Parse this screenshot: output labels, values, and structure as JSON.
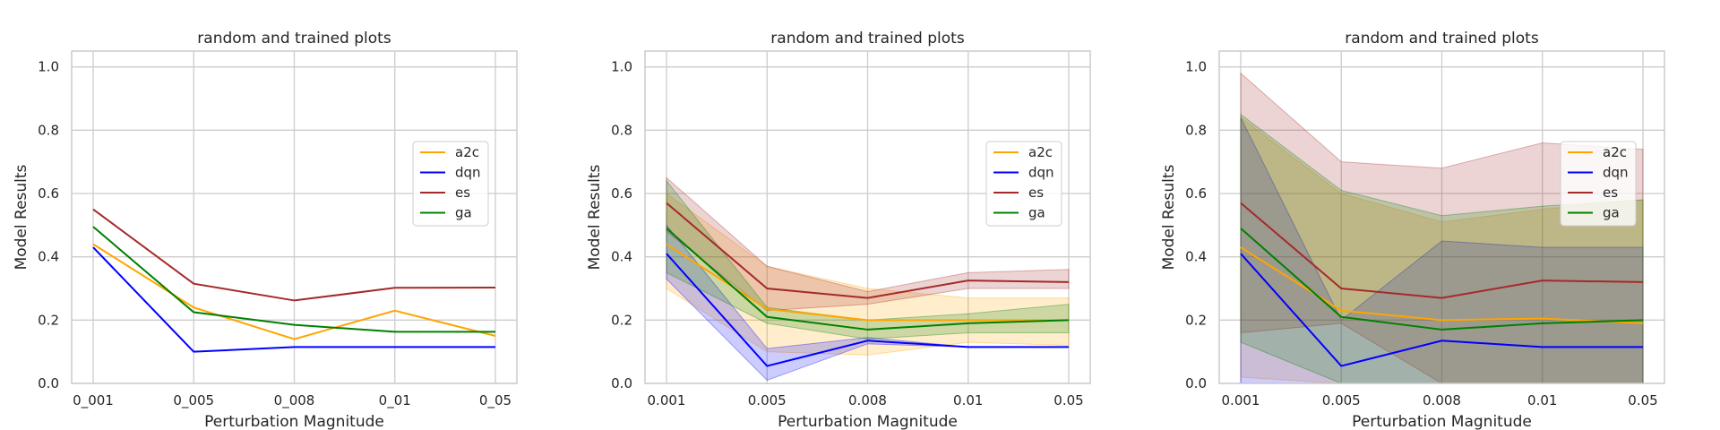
{
  "chart_data": [
    {
      "type": "line",
      "title": "random and trained plots",
      "xlabel": "Perturbation Magnitude",
      "ylabel": "Model Results",
      "categories": [
        "0_001",
        "0_005",
        "0_008",
        "0_01",
        "0_05"
      ],
      "ylim": [
        0,
        1.05
      ],
      "yticks": [
        "0.0",
        "0.2",
        "0.4",
        "0.6",
        "0.8",
        "1.0"
      ],
      "grid": true,
      "legend": "center-right",
      "series": [
        {
          "name": "a2c",
          "color": "#ffa500",
          "values": [
            0.44,
            0.24,
            0.14,
            0.23,
            0.15
          ]
        },
        {
          "name": "dqn",
          "color": "#0000ff",
          "values": [
            0.43,
            0.1,
            0.115,
            0.115,
            0.115
          ]
        },
        {
          "name": "es",
          "color": "#a52a2a",
          "values": [
            0.55,
            0.315,
            0.262,
            0.302,
            0.303
          ]
        },
        {
          "name": "ga",
          "color": "#008000",
          "values": [
            0.495,
            0.225,
            0.185,
            0.163,
            0.163
          ]
        }
      ]
    },
    {
      "type": "line",
      "title": "random and trained plots",
      "xlabel": "Perturbation Magnitude",
      "ylabel": "Model Results",
      "categories": [
        "0.001",
        "0.005",
        "0.008",
        "0.01",
        "0.05"
      ],
      "ylim": [
        0,
        1.05
      ],
      "yticks": [
        "0.0",
        "0.2",
        "0.4",
        "0.6",
        "0.8",
        "1.0"
      ],
      "grid": true,
      "legend": "center-right",
      "series": [
        {
          "name": "a2c",
          "color": "#ffa500",
          "values": [
            0.44,
            0.235,
            0.2,
            0.2,
            0.2
          ],
          "lower": [
            0.3,
            0.1,
            0.09,
            0.13,
            0.12
          ],
          "upper": [
            0.6,
            0.37,
            0.3,
            0.27,
            0.27
          ]
        },
        {
          "name": "dqn",
          "color": "#0000ff",
          "values": [
            0.41,
            0.055,
            0.135,
            0.115,
            0.115
          ],
          "lower": [
            0.33,
            0.01,
            0.125,
            0.115,
            0.115
          ],
          "upper": [
            0.5,
            0.11,
            0.145,
            0.115,
            0.115
          ]
        },
        {
          "name": "es",
          "color": "#a52a2a",
          "values": [
            0.57,
            0.3,
            0.27,
            0.325,
            0.32
          ],
          "lower": [
            0.48,
            0.23,
            0.25,
            0.3,
            0.3
          ],
          "upper": [
            0.65,
            0.37,
            0.29,
            0.35,
            0.36
          ]
        },
        {
          "name": "ga",
          "color": "#008000",
          "values": [
            0.49,
            0.21,
            0.17,
            0.19,
            0.2
          ],
          "lower": [
            0.35,
            0.19,
            0.14,
            0.16,
            0.16
          ],
          "upper": [
            0.64,
            0.24,
            0.2,
            0.22,
            0.25
          ]
        }
      ]
    },
    {
      "type": "line",
      "title": "random and trained plots",
      "xlabel": "Perturbation Magnitude",
      "ylabel": "Model Results",
      "categories": [
        "0.001",
        "0.005",
        "0.008",
        "0.01",
        "0.05"
      ],
      "ylim": [
        0,
        1.05
      ],
      "yticks": [
        "0.0",
        "0.2",
        "0.4",
        "0.6",
        "0.8",
        "1.0"
      ],
      "grid": true,
      "legend": "center-right",
      "series": [
        {
          "name": "a2c",
          "color": "#ffa500",
          "values": [
            0.43,
            0.23,
            0.2,
            0.205,
            0.19
          ],
          "lower": [
            0.02,
            0.0,
            0.0,
            0.0,
            0.0
          ],
          "upper": [
            0.84,
            0.6,
            0.51,
            0.55,
            0.58
          ]
        },
        {
          "name": "dqn",
          "color": "#0000ff",
          "values": [
            0.41,
            0.055,
            0.135,
            0.115,
            0.115
          ],
          "lower": [
            0.0,
            0.0,
            0.0,
            0.0,
            0.0
          ],
          "upper": [
            0.84,
            0.2,
            0.45,
            0.43,
            0.43
          ]
        },
        {
          "name": "es",
          "color": "#a52a2a",
          "values": [
            0.57,
            0.3,
            0.27,
            0.325,
            0.32
          ],
          "lower": [
            0.16,
            0.19,
            0.0,
            0.0,
            0.0
          ],
          "upper": [
            0.98,
            0.7,
            0.68,
            0.76,
            0.74
          ]
        },
        {
          "name": "ga",
          "color": "#008000",
          "values": [
            0.49,
            0.21,
            0.17,
            0.19,
            0.2
          ],
          "lower": [
            0.13,
            0.0,
            0.0,
            0.0,
            0.0
          ],
          "upper": [
            0.85,
            0.61,
            0.53,
            0.56,
            0.58
          ]
        }
      ]
    }
  ]
}
